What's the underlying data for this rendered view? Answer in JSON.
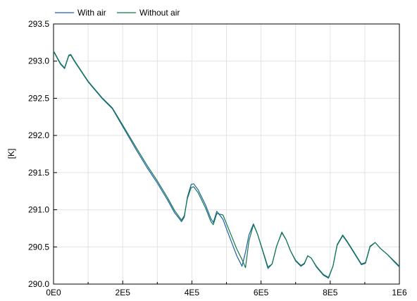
{
  "chart_data": {
    "type": "line",
    "title": "",
    "xlabel": "",
    "ylabel": "[K]",
    "xlim": [
      0,
      1000000
    ],
    "ylim": [
      290.0,
      293.5
    ],
    "x_ticks": [
      0,
      200000,
      400000,
      600000,
      800000,
      1000000
    ],
    "x_tick_labels": [
      "0E0",
      "2E5",
      "4E5",
      "6E5",
      "8E5",
      "1E6"
    ],
    "y_ticks": [
      290.0,
      290.5,
      291.0,
      291.5,
      292.0,
      292.5,
      293.0,
      293.5
    ],
    "y_tick_labels": [
      "290.0",
      "290.5",
      "291.0",
      "291.5",
      "292.0",
      "292.5",
      "293.0",
      "293.5"
    ],
    "grid": true,
    "legend_position": "top-left-outside",
    "series": [
      {
        "name": "With air",
        "color": "#1f5fa8",
        "x": [
          0,
          20000,
          32000,
          44000,
          50000,
          60000,
          100000,
          140000,
          170000,
          200000,
          240000,
          270000,
          300000,
          330000,
          350000,
          370000,
          378000,
          387000,
          398000,
          405000,
          418000,
          440000,
          455000,
          462000,
          472000,
          490000,
          510000,
          530000,
          545000,
          555000,
          565000,
          578000,
          590000,
          605000,
          620000,
          632000,
          645000,
          660000,
          672000,
          685000,
          700000,
          715000,
          725000,
          735000,
          745000,
          760000,
          780000,
          795000,
          808000,
          820000,
          836000,
          850000,
          870000,
          890000,
          902000,
          915000,
          930000,
          945000,
          965000,
          985000,
          1000000
        ],
        "y": [
          293.13,
          292.96,
          292.9,
          293.07,
          293.08,
          293.0,
          292.72,
          292.5,
          292.36,
          292.12,
          291.8,
          291.57,
          291.36,
          291.13,
          290.96,
          290.84,
          290.9,
          291.17,
          291.34,
          291.35,
          291.27,
          291.06,
          290.88,
          290.83,
          290.98,
          290.87,
          290.62,
          290.38,
          290.24,
          290.43,
          290.66,
          290.81,
          290.67,
          290.44,
          290.21,
          290.27,
          290.51,
          290.69,
          290.6,
          290.45,
          290.31,
          290.24,
          290.27,
          290.38,
          290.35,
          290.23,
          290.12,
          290.08,
          290.24,
          290.52,
          290.65,
          290.56,
          290.41,
          290.26,
          290.28,
          290.5,
          290.56,
          290.48,
          290.4,
          290.3,
          290.23
        ]
      },
      {
        "name": "Without air",
        "color": "#0f7a4a",
        "x": [
          0,
          20000,
          32000,
          44000,
          50000,
          60000,
          100000,
          140000,
          170000,
          200000,
          240000,
          270000,
          300000,
          330000,
          350000,
          370000,
          378000,
          387000,
          398000,
          405000,
          418000,
          440000,
          455000,
          462000,
          472000,
          490000,
          510000,
          530000,
          545000,
          555000,
          565000,
          578000,
          590000,
          605000,
          620000,
          632000,
          645000,
          660000,
          672000,
          685000,
          700000,
          715000,
          725000,
          735000,
          745000,
          760000,
          780000,
          795000,
          808000,
          820000,
          836000,
          850000,
          870000,
          890000,
          902000,
          915000,
          930000,
          945000,
          965000,
          985000,
          1000000
        ],
        "y": [
          293.14,
          292.97,
          292.91,
          293.08,
          293.09,
          293.01,
          292.73,
          292.51,
          292.37,
          292.14,
          291.83,
          291.6,
          291.39,
          291.16,
          290.99,
          290.86,
          290.92,
          291.15,
          291.3,
          291.31,
          291.23,
          291.02,
          290.84,
          290.8,
          290.95,
          290.93,
          290.7,
          290.47,
          290.33,
          290.22,
          290.58,
          290.8,
          290.67,
          290.45,
          290.23,
          290.27,
          290.51,
          290.7,
          290.6,
          290.45,
          290.32,
          290.25,
          290.28,
          290.38,
          290.35,
          290.24,
          290.13,
          290.09,
          290.24,
          290.53,
          290.66,
          290.57,
          290.42,
          290.27,
          290.29,
          290.51,
          290.56,
          290.48,
          290.4,
          290.31,
          290.24
        ]
      }
    ]
  }
}
